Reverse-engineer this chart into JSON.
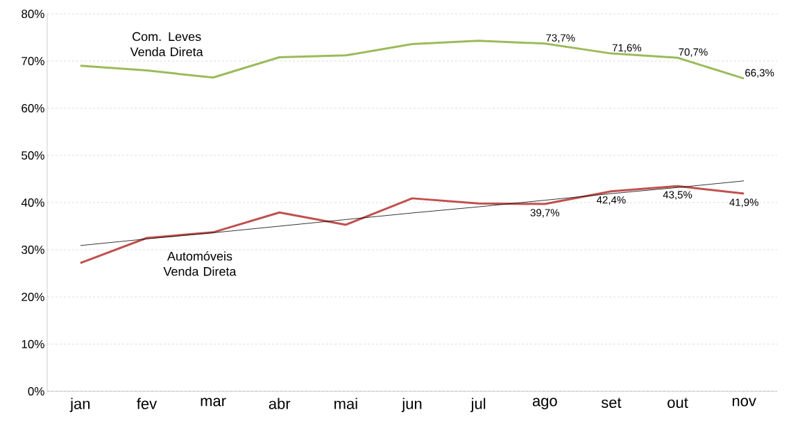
{
  "chart_data": {
    "type": "line",
    "categories": [
      "jan",
      "fev",
      "mar",
      "abr",
      "mai",
      "jun",
      "jul",
      "ago",
      "set",
      "out",
      "nov"
    ],
    "series": [
      {
        "name": "Com. Leves Venda Direta",
        "color": "#9bbb59",
        "values": [
          69.0,
          68.0,
          66.5,
          70.8,
          71.2,
          73.6,
          74.3,
          73.7,
          71.6,
          70.7,
          66.3
        ],
        "value_labels": [
          null,
          null,
          null,
          null,
          null,
          null,
          null,
          "73,7%",
          "71,6%",
          "70,7%",
          "66,3%"
        ]
      },
      {
        "name": "Automóveis Venda Direta",
        "color": "#c0504d",
        "values": [
          27.2,
          32.5,
          33.7,
          37.9,
          35.3,
          40.9,
          39.8,
          39.7,
          42.4,
          43.5,
          41.9
        ],
        "value_labels": [
          null,
          null,
          null,
          null,
          null,
          null,
          null,
          "39,7%",
          "42,4%",
          "43,5%",
          "41,9%"
        ]
      },
      {
        "color": "#000000",
        "values": [
          30.9,
          32.3,
          33.6,
          35.0,
          36.4,
          37.8,
          39.1,
          40.5,
          41.9,
          43.2,
          44.6
        ]
      }
    ],
    "ylim": [
      0,
      80
    ],
    "yticks": [
      {
        "value": 0,
        "label": "0%"
      },
      {
        "value": 10,
        "label": "10%"
      },
      {
        "value": 20,
        "label": "20%"
      },
      {
        "value": 30,
        "label": "30%"
      },
      {
        "value": 40,
        "label": "40%"
      },
      {
        "value": 50,
        "label": "50%"
      },
      {
        "value": 60,
        "label": "60%"
      },
      {
        "value": 70,
        "label": "70%"
      },
      {
        "value": 80,
        "label": "80%"
      }
    ],
    "grid": "y",
    "legend": false,
    "marker": "none",
    "line_style": "solid"
  }
}
